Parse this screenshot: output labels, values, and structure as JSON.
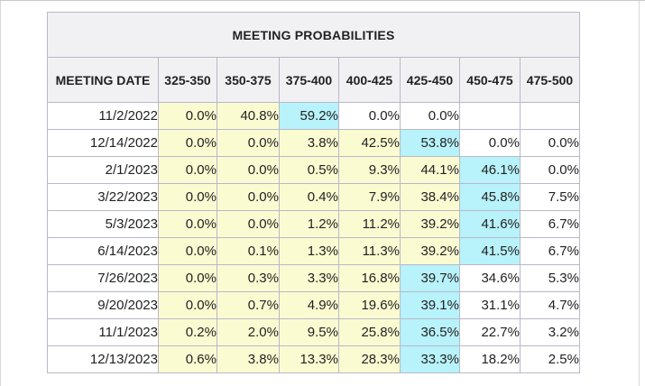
{
  "table": {
    "title": "MEETING PROBABILITIES",
    "headers": [
      "MEETING DATE",
      "325-350",
      "350-375",
      "375-400",
      "400-425",
      "425-450",
      "450-475",
      "475-500"
    ],
    "colors": {
      "yellow": "#fbfbd2",
      "cyan": "#b8f2fa",
      "white": "#ffffff",
      "header_bg": "#f1f1f4"
    },
    "rows": [
      {
        "date": "11/2/2022",
        "values": [
          "0.0%",
          "40.8%",
          "59.2%",
          "0.0%",
          "0.0%",
          "",
          ""
        ],
        "shade": [
          "y",
          "y",
          "c",
          "w",
          "w",
          "w",
          "w"
        ]
      },
      {
        "date": "12/14/2022",
        "values": [
          "0.0%",
          "0.0%",
          "3.8%",
          "42.5%",
          "53.8%",
          "0.0%",
          "0.0%"
        ],
        "shade": [
          "y",
          "y",
          "y",
          "y",
          "c",
          "w",
          "w"
        ]
      },
      {
        "date": "2/1/2023",
        "values": [
          "0.0%",
          "0.0%",
          "0.5%",
          "9.3%",
          "44.1%",
          "46.1%",
          "0.0%"
        ],
        "shade": [
          "y",
          "y",
          "y",
          "y",
          "y",
          "c",
          "w"
        ]
      },
      {
        "date": "3/22/2023",
        "values": [
          "0.0%",
          "0.0%",
          "0.4%",
          "7.9%",
          "38.4%",
          "45.8%",
          "7.5%"
        ],
        "shade": [
          "y",
          "y",
          "y",
          "y",
          "y",
          "c",
          "w"
        ]
      },
      {
        "date": "5/3/2023",
        "values": [
          "0.0%",
          "0.0%",
          "1.2%",
          "11.2%",
          "39.2%",
          "41.6%",
          "6.7%"
        ],
        "shade": [
          "y",
          "y",
          "y",
          "y",
          "y",
          "c",
          "w"
        ]
      },
      {
        "date": "6/14/2023",
        "values": [
          "0.0%",
          "0.1%",
          "1.3%",
          "11.3%",
          "39.2%",
          "41.5%",
          "6.7%"
        ],
        "shade": [
          "y",
          "y",
          "y",
          "y",
          "y",
          "c",
          "w"
        ]
      },
      {
        "date": "7/26/2023",
        "values": [
          "0.0%",
          "0.3%",
          "3.3%",
          "16.8%",
          "39.7%",
          "34.6%",
          "5.3%"
        ],
        "shade": [
          "y",
          "y",
          "y",
          "y",
          "c",
          "w",
          "w"
        ]
      },
      {
        "date": "9/20/2023",
        "values": [
          "0.0%",
          "0.7%",
          "4.9%",
          "19.6%",
          "39.1%",
          "31.1%",
          "4.7%"
        ],
        "shade": [
          "y",
          "y",
          "y",
          "y",
          "c",
          "w",
          "w"
        ]
      },
      {
        "date": "11/1/2023",
        "values": [
          "0.2%",
          "2.0%",
          "9.5%",
          "25.8%",
          "36.5%",
          "22.7%",
          "3.2%"
        ],
        "shade": [
          "y",
          "y",
          "y",
          "y",
          "c",
          "w",
          "w"
        ]
      },
      {
        "date": "12/13/2023",
        "values": [
          "0.6%",
          "3.8%",
          "13.3%",
          "28.3%",
          "33.3%",
          "18.2%",
          "2.5%"
        ],
        "shade": [
          "y",
          "y",
          "y",
          "y",
          "c",
          "w",
          "w"
        ]
      }
    ]
  }
}
